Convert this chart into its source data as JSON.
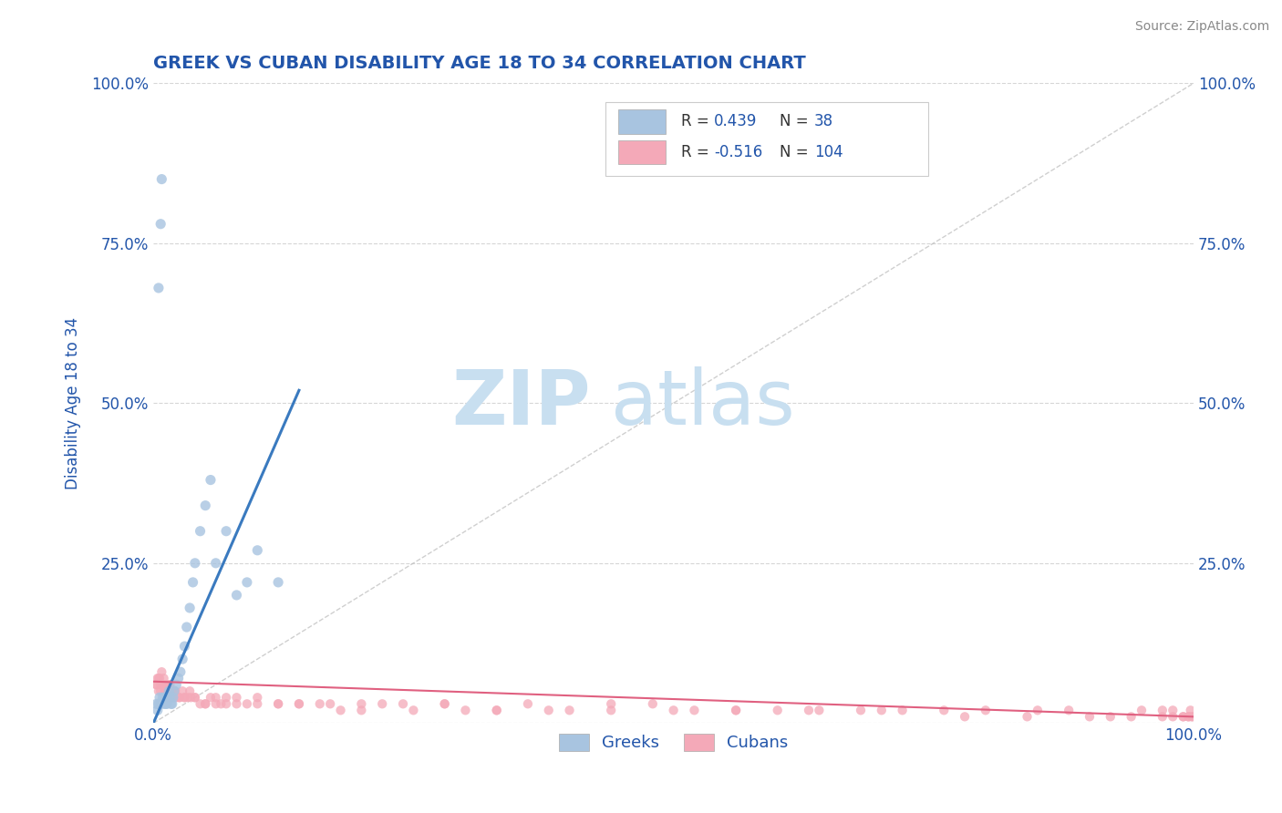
{
  "title": "GREEK VS CUBAN DISABILITY AGE 18 TO 34 CORRELATION CHART",
  "source_text": "Source: ZipAtlas.com",
  "ylabel": "Disability Age 18 to 34",
  "xlim": [
    0.0,
    1.0
  ],
  "ylim": [
    0.0,
    1.0
  ],
  "greek_R": 0.439,
  "greek_N": 38,
  "cuban_R": -0.516,
  "cuban_N": 104,
  "greek_color": "#a8c4e0",
  "cuban_color": "#f4a9b8",
  "greek_line_color": "#3a7abf",
  "cuban_line_color": "#e06080",
  "title_color": "#2255aa",
  "axis_label_color": "#2255aa",
  "tick_label_color": "#2255aa",
  "source_color": "#888888",
  "watermark_color": "#c8dff0",
  "greek_x": [
    0.003,
    0.004,
    0.005,
    0.006,
    0.007,
    0.008,
    0.009,
    0.01,
    0.011,
    0.012,
    0.013,
    0.014,
    0.015,
    0.016,
    0.017,
    0.018,
    0.019,
    0.02,
    0.022,
    0.024,
    0.026,
    0.028,
    0.03,
    0.032,
    0.035,
    0.038,
    0.04,
    0.045,
    0.05,
    0.055,
    0.06,
    0.07,
    0.08,
    0.09,
    0.1,
    0.12,
    0.005,
    0.007
  ],
  "greek_y": [
    0.03,
    0.02,
    0.03,
    0.04,
    0.03,
    0.85,
    0.04,
    0.03,
    0.04,
    0.03,
    0.03,
    0.04,
    0.05,
    0.04,
    0.03,
    0.03,
    0.04,
    0.05,
    0.06,
    0.07,
    0.08,
    0.1,
    0.12,
    0.15,
    0.18,
    0.22,
    0.25,
    0.3,
    0.34,
    0.38,
    0.25,
    0.3,
    0.2,
    0.22,
    0.27,
    0.22,
    0.68,
    0.78
  ],
  "cuban_x": [
    0.003,
    0.004,
    0.005,
    0.006,
    0.007,
    0.008,
    0.009,
    0.01,
    0.011,
    0.012,
    0.013,
    0.014,
    0.015,
    0.016,
    0.017,
    0.018,
    0.02,
    0.022,
    0.025,
    0.028,
    0.03,
    0.033,
    0.036,
    0.04,
    0.045,
    0.05,
    0.055,
    0.06,
    0.065,
    0.07,
    0.08,
    0.09,
    0.1,
    0.12,
    0.14,
    0.16,
    0.18,
    0.2,
    0.22,
    0.25,
    0.28,
    0.3,
    0.33,
    0.36,
    0.4,
    0.44,
    0.48,
    0.52,
    0.56,
    0.6,
    0.64,
    0.68,
    0.72,
    0.76,
    0.8,
    0.84,
    0.88,
    0.92,
    0.95,
    0.97,
    0.98,
    0.99,
    0.995,
    0.997,
    0.999,
    0.003,
    0.005,
    0.007,
    0.009,
    0.012,
    0.015,
    0.018,
    0.021,
    0.025,
    0.03,
    0.035,
    0.04,
    0.05,
    0.06,
    0.07,
    0.08,
    0.1,
    0.12,
    0.14,
    0.17,
    0.2,
    0.24,
    0.28,
    0.33,
    0.38,
    0.44,
    0.5,
    0.56,
    0.63,
    0.7,
    0.78,
    0.85,
    0.9,
    0.94,
    0.97,
    0.98,
    0.99,
    0.995,
    0.998
  ],
  "cuban_y": [
    0.06,
    0.07,
    0.05,
    0.07,
    0.06,
    0.08,
    0.06,
    0.07,
    0.05,
    0.06,
    0.05,
    0.04,
    0.05,
    0.06,
    0.04,
    0.05,
    0.05,
    0.04,
    0.04,
    0.05,
    0.04,
    0.04,
    0.04,
    0.04,
    0.03,
    0.03,
    0.04,
    0.03,
    0.03,
    0.04,
    0.03,
    0.03,
    0.04,
    0.03,
    0.03,
    0.03,
    0.02,
    0.03,
    0.03,
    0.02,
    0.03,
    0.02,
    0.02,
    0.03,
    0.02,
    0.02,
    0.03,
    0.02,
    0.02,
    0.02,
    0.02,
    0.02,
    0.02,
    0.02,
    0.02,
    0.01,
    0.02,
    0.01,
    0.02,
    0.01,
    0.02,
    0.01,
    0.01,
    0.02,
    0.01,
    0.06,
    0.07,
    0.05,
    0.06,
    0.05,
    0.06,
    0.05,
    0.05,
    0.04,
    0.04,
    0.05,
    0.04,
    0.03,
    0.04,
    0.03,
    0.04,
    0.03,
    0.03,
    0.03,
    0.03,
    0.02,
    0.03,
    0.03,
    0.02,
    0.02,
    0.03,
    0.02,
    0.02,
    0.02,
    0.02,
    0.01,
    0.02,
    0.01,
    0.01,
    0.02,
    0.01,
    0.01,
    0.01,
    0.01
  ],
  "greek_line_x": [
    0.0,
    0.14
  ],
  "greek_line_y_start": 0.0,
  "greek_line_y_end": 0.52,
  "cuban_line_x": [
    0.0,
    1.0
  ],
  "cuban_line_y_start": 0.065,
  "cuban_line_y_end": 0.01
}
